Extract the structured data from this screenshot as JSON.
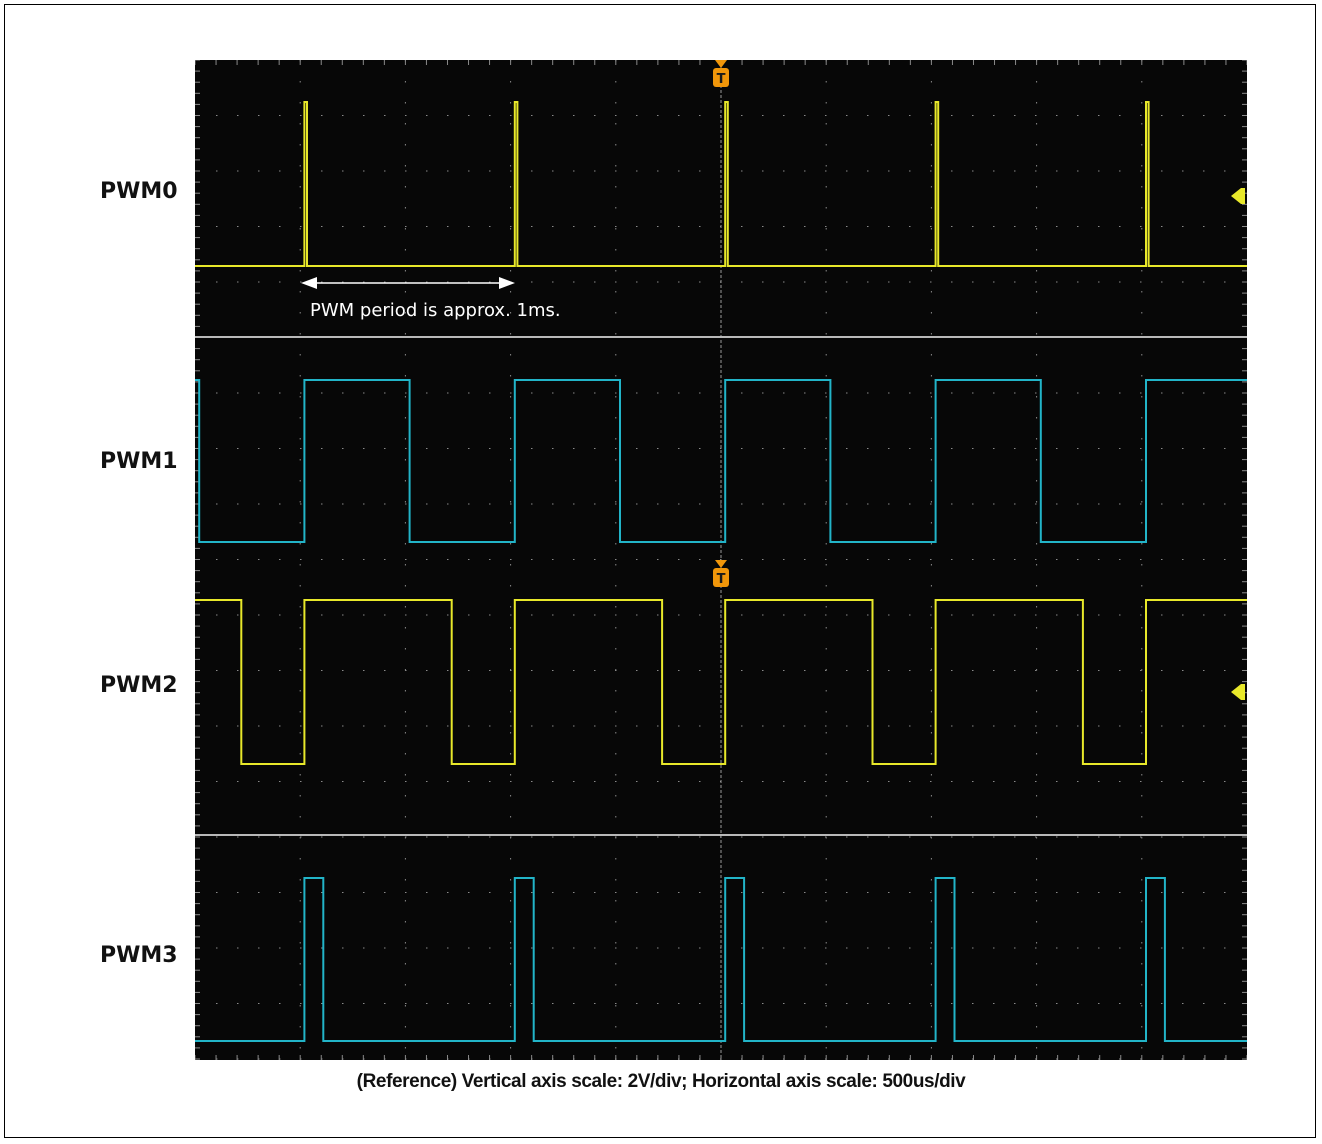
{
  "chart_data": {
    "type": "line",
    "display": "oscilloscope",
    "colors": {
      "background": "#070707",
      "grid": "#8a8a8a",
      "ch_yellow": "#e8e82a",
      "ch_cyan": "#22b4c8",
      "marker": "#f0960a"
    },
    "time_unit": "div",
    "divisions": {
      "x": 10,
      "y": 4
    },
    "channels": [
      {
        "name": "PWM0",
        "color": "#e8e82a",
        "period_div": 2,
        "phase_div": 1.04,
        "high_div": 0.025
      },
      {
        "name": "PWM1",
        "color": "#22b4c8",
        "period_div": 2,
        "phase_div": 1.04,
        "high_div": 1.0
      },
      {
        "name": "PWM2",
        "color": "#e8e82a",
        "period_div": 2,
        "phase_div": 1.04,
        "high_div": 1.4
      },
      {
        "name": "PWM3",
        "color": "#22b4c8",
        "period_div": 2,
        "phase_div": 1.04,
        "high_div": 0.18
      }
    ],
    "annotation": "PWM period is approx. 1ms.",
    "caption": "(Reference)  Vertical axis scale: 2V/div; Horizontal axis scale: 500us/div",
    "grid": true,
    "trigger_marker": "T"
  }
}
